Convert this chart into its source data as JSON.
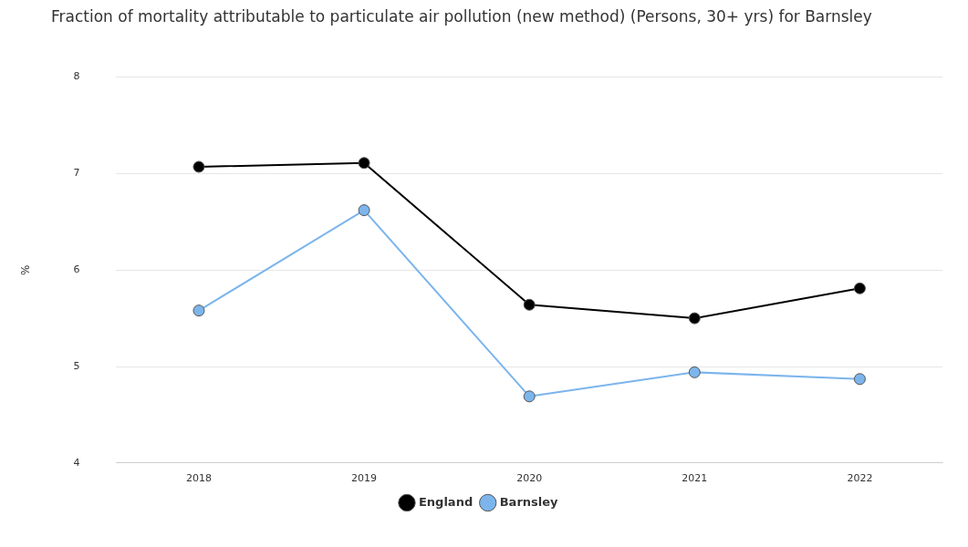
{
  "chart_data": {
    "type": "line",
    "title": "Fraction of mortality attributable to particulate air pollution (new method) (Persons, 30+ yrs) for Barnsley",
    "ylabel": "%",
    "categories": [
      "2018",
      "2019",
      "2020",
      "2021",
      "2022"
    ],
    "series": [
      {
        "name": "England",
        "color": "#000000",
        "values": [
          7.07,
          7.11,
          5.64,
          5.5,
          5.81
        ]
      },
      {
        "name": "Barnsley",
        "color": "#7cb5ec",
        "values": [
          5.58,
          6.62,
          4.69,
          4.94,
          4.87
        ]
      }
    ],
    "ylim": [
      4,
      8
    ],
    "yticks": [
      4,
      5,
      6,
      7,
      8
    ],
    "grid": "y",
    "legend": "bottom",
    "marker": "circle",
    "line_style": "solid"
  }
}
